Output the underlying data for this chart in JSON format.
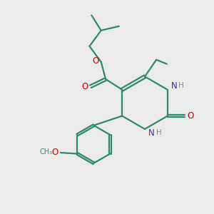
{
  "background_color": "#ebebeb",
  "bond_color": "#2d8a6b",
  "nitrogen_color": "#3030b0",
  "oxygen_color": "#cc0000",
  "hydrogen_color": "#888888",
  "line_width": 1.6,
  "figsize": [
    3.0,
    3.0
  ],
  "dpi": 100,
  "xlim": [
    0,
    10
  ],
  "ylim": [
    0,
    10
  ]
}
